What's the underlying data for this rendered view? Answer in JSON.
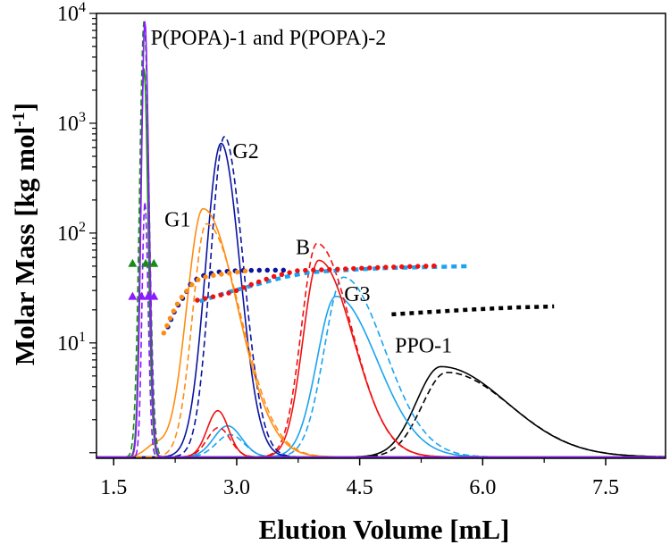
{
  "chart_data": {
    "type": "line",
    "xlabel": "Elution Volume [mL]",
    "ylabel_main": "Molar Mass [kg mol",
    "ylabel_sup": "-1",
    "ylabel_end": "]",
    "xlim": [
      1.29,
      8.23
    ],
    "ylim": [
      0.89,
      10000
    ],
    "yscale": "log",
    "x_ticks": [
      {
        "value": 1.5,
        "label": "1.5"
      },
      {
        "value": 3.0,
        "label": "3.0"
      },
      {
        "value": 4.5,
        "label": "4.5"
      },
      {
        "value": 6.0,
        "label": "6.0"
      },
      {
        "value": 7.5,
        "label": "7.5"
      }
    ],
    "y_ticks": [
      {
        "value": 10,
        "base": "10",
        "exp": "1"
      },
      {
        "value": 100,
        "base": "10",
        "exp": "2"
      },
      {
        "value": 1000,
        "base": "10",
        "exp": "3"
      },
      {
        "value": 10000,
        "base": "10",
        "exp": "4"
      }
    ],
    "annotations": [
      {
        "text": "P(POPA)-1 and P(POPA)-2",
        "x": 1.95,
        "y": 5200
      },
      {
        "text": "G2",
        "x": 2.95,
        "y": 480
      },
      {
        "text": "G1",
        "x": 2.12,
        "y": 115
      },
      {
        "text": "B",
        "x": 3.72,
        "y": 64
      },
      {
        "text": "G3",
        "x": 4.31,
        "y": 24
      },
      {
        "text": "PPO-1",
        "x": 4.93,
        "y": 8.2
      }
    ],
    "chromatograms_note_units": "relative detector signal, 0 = baseline, 1 = top of plot",
    "chromatograms": [
      {
        "name": "PPO-1 solid",
        "color": "#000000",
        "dash": false,
        "center": 5.49,
        "height": 0.203,
        "sigma_left": 0.3,
        "sigma_right": 0.8,
        "bumps": []
      },
      {
        "name": "PPO-1 dashed",
        "color": "#000000",
        "dash": true,
        "center": 5.56,
        "height": 0.19,
        "sigma_left": 0.3,
        "sigma_right": 0.78,
        "bumps": []
      },
      {
        "name": "G3 solid",
        "color": "#1aa3f0",
        "dash": false,
        "center": 4.21,
        "height": 0.361,
        "sigma_left": 0.23,
        "sigma_right": 0.5,
        "bumps": [
          {
            "center": 2.89,
            "height": 0.07,
            "sigma": 0.17
          }
        ]
      },
      {
        "name": "G3 dashed",
        "color": "#1aa3f0",
        "dash": true,
        "center": 4.3,
        "height": 0.404,
        "sigma_left": 0.23,
        "sigma_right": 0.5,
        "bumps": [
          {
            "center": 2.92,
            "height": 0.05,
            "sigma": 0.17
          }
        ]
      },
      {
        "name": "B solid",
        "color": "#f01010",
        "dash": false,
        "center": 4.0,
        "height": 0.442,
        "sigma_left": 0.19,
        "sigma_right": 0.42,
        "bumps": [
          {
            "center": 2.77,
            "height": 0.104,
            "sigma": 0.13
          }
        ]
      },
      {
        "name": "B dashed",
        "color": "#f01010",
        "dash": true,
        "center": 3.98,
        "height": 0.48,
        "sigma_left": 0.19,
        "sigma_right": 0.42,
        "bumps": [
          {
            "center": 2.78,
            "height": 0.066,
            "sigma": 0.14
          }
        ]
      },
      {
        "name": "G2 solid",
        "color": "#0a14a0",
        "dash": false,
        "center": 2.81,
        "height": 0.705,
        "sigma_left": 0.19,
        "sigma_right": 0.23,
        "bumps": []
      },
      {
        "name": "G2 dashed",
        "color": "#0a14a0",
        "dash": true,
        "center": 2.85,
        "height": 0.72,
        "sigma_left": 0.17,
        "sigma_right": 0.23,
        "bumps": []
      },
      {
        "name": "G1 solid",
        "color": "#ff8c10",
        "dash": false,
        "center": 2.59,
        "height": 0.558,
        "sigma_left": 0.2,
        "sigma_right": 0.42,
        "bumps": [
          {
            "center": 2.0,
            "height": 0.025,
            "sigma": 0.12
          }
        ]
      },
      {
        "name": "G1 dashed",
        "color": "#ff8c10",
        "dash": true,
        "center": 2.63,
        "height": 0.524,
        "sigma_left": 0.17,
        "sigma_right": 0.42,
        "bumps": []
      },
      {
        "name": "P(POPA)-2 solid",
        "color": "#1a8a1a",
        "dash": false,
        "center": 1.87,
        "height": 0.875,
        "sigma_left": 0.045,
        "sigma_right": 0.05,
        "bumps": []
      },
      {
        "name": "P(POPA)-2 dashed",
        "color": "#1a8a1a",
        "dash": true,
        "center": 1.87,
        "height": 0.98,
        "sigma_left": 0.055,
        "sigma_right": 0.06,
        "bumps": []
      },
      {
        "name": "P(POPA)-1 solid",
        "color": "#8a1aff",
        "dash": false,
        "center": 1.88,
        "height": 0.98,
        "sigma_left": 0.045,
        "sigma_right": 0.05,
        "bumps": []
      },
      {
        "name": "P(POPA)-1 dashed",
        "color": "#8a1aff",
        "dash": true,
        "center": 1.88,
        "height": 0.574,
        "sigma_left": 0.035,
        "sigma_right": 0.04,
        "bumps": []
      }
    ],
    "molar_mass_series": [
      {
        "name": "G3 molar mass",
        "color": "#1aa3f0",
        "marker": "dash",
        "x": [
          2.55,
          2.9,
          3.3,
          3.6,
          3.9,
          4.3,
          4.8,
          5.3,
          5.85
        ],
        "y": [
          24,
          29,
          35,
          40,
          44,
          46,
          48,
          49,
          50
        ]
      },
      {
        "name": "B molar mass",
        "color": "#f01010",
        "marker": "dot",
        "x": [
          2.52,
          2.73,
          2.95,
          3.2,
          3.47,
          3.75,
          4.12,
          4.84,
          5.5
        ],
        "y": [
          24.5,
          26.5,
          29,
          34.5,
          40.6,
          45.6,
          46.5,
          49,
          50.5
        ]
      },
      {
        "name": "G2 molar mass",
        "color": "#0a14a0",
        "marker": "dot",
        "x": [
          2.16,
          2.25,
          2.35,
          2.44,
          2.55,
          2.73,
          3.03,
          3.39,
          3.61
        ],
        "y": [
          14,
          20,
          26,
          34.5,
          40,
          44,
          45.6,
          46,
          46
        ]
      },
      {
        "name": "G1 molar mass",
        "color": "#ff8c10",
        "marker": "dot",
        "x": [
          2.11,
          2.21,
          2.3,
          2.46,
          2.55,
          2.66,
          2.84,
          3.15
        ],
        "y": [
          12.3,
          18.2,
          24.5,
          34.4,
          38.6,
          40.6,
          42.5,
          45.6
        ]
      },
      {
        "name": "PPO-1 molar mass",
        "color": "#000000",
        "marker": "square",
        "x": [
          4.89,
          5.4,
          5.9,
          6.4,
          6.87
        ],
        "y": [
          18.2,
          19.2,
          20.2,
          21,
          21.5
        ]
      },
      {
        "name": "P(POPA)-2 molar mass",
        "color": "#1a8a1a",
        "marker": "triangle",
        "x": [
          1.73,
          1.89,
          1.99
        ],
        "y": [
          53,
          53,
          53
        ]
      },
      {
        "name": "P(POPA)-1 molar mass",
        "color": "#8a1aff",
        "marker": "triangle",
        "x": [
          1.73,
          1.84,
          1.92,
          1.99
        ],
        "y": [
          26.6,
          26.6,
          26.6,
          26.6
        ]
      }
    ]
  }
}
